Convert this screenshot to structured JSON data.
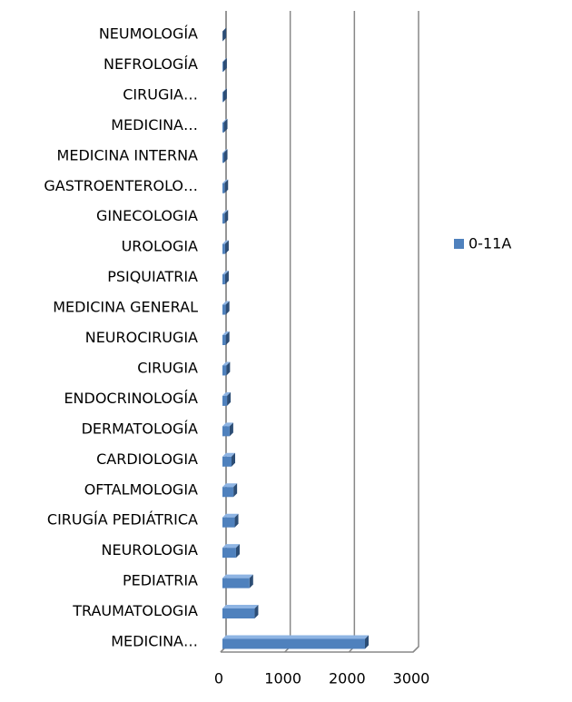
{
  "chart_data": {
    "type": "bar",
    "orientation": "horizontal",
    "categories": [
      "MEDICINA…",
      "TRAUMATOLOGIA",
      "PEDIATRIA",
      "NEUROLOGIA",
      "CIRUGÍA PEDIÁTRICA",
      "OFTALMOLOGIA",
      "CARDIOLOGIA",
      "DERMATOLOGÍA",
      "ENDOCRINOLOGÍA",
      "CIRUGIA",
      "NEUROCIRUGIA",
      "MEDICINA GENERAL",
      "PSIQUIATRIA",
      "UROLOGIA",
      "GINECOLOGIA",
      "GASTROENTEROLO…",
      "MEDICINA INTERNA",
      "MEDICINA…",
      "CIRUGIA…",
      "NEFROLOGÍA",
      "NEUMOLOGÍA"
    ],
    "series": [
      {
        "name": "0-11A",
        "color": "#4f81bd",
        "values": [
          2250,
          530,
          450,
          240,
          220,
          200,
          170,
          140,
          100,
          90,
          80,
          80,
          70,
          70,
          60,
          60,
          50,
          50,
          40,
          40,
          30
        ]
      }
    ],
    "xlim": [
      0,
      3000
    ],
    "xticks": [
      0,
      1000,
      2000,
      3000
    ],
    "grid": true,
    "legend": "right"
  }
}
